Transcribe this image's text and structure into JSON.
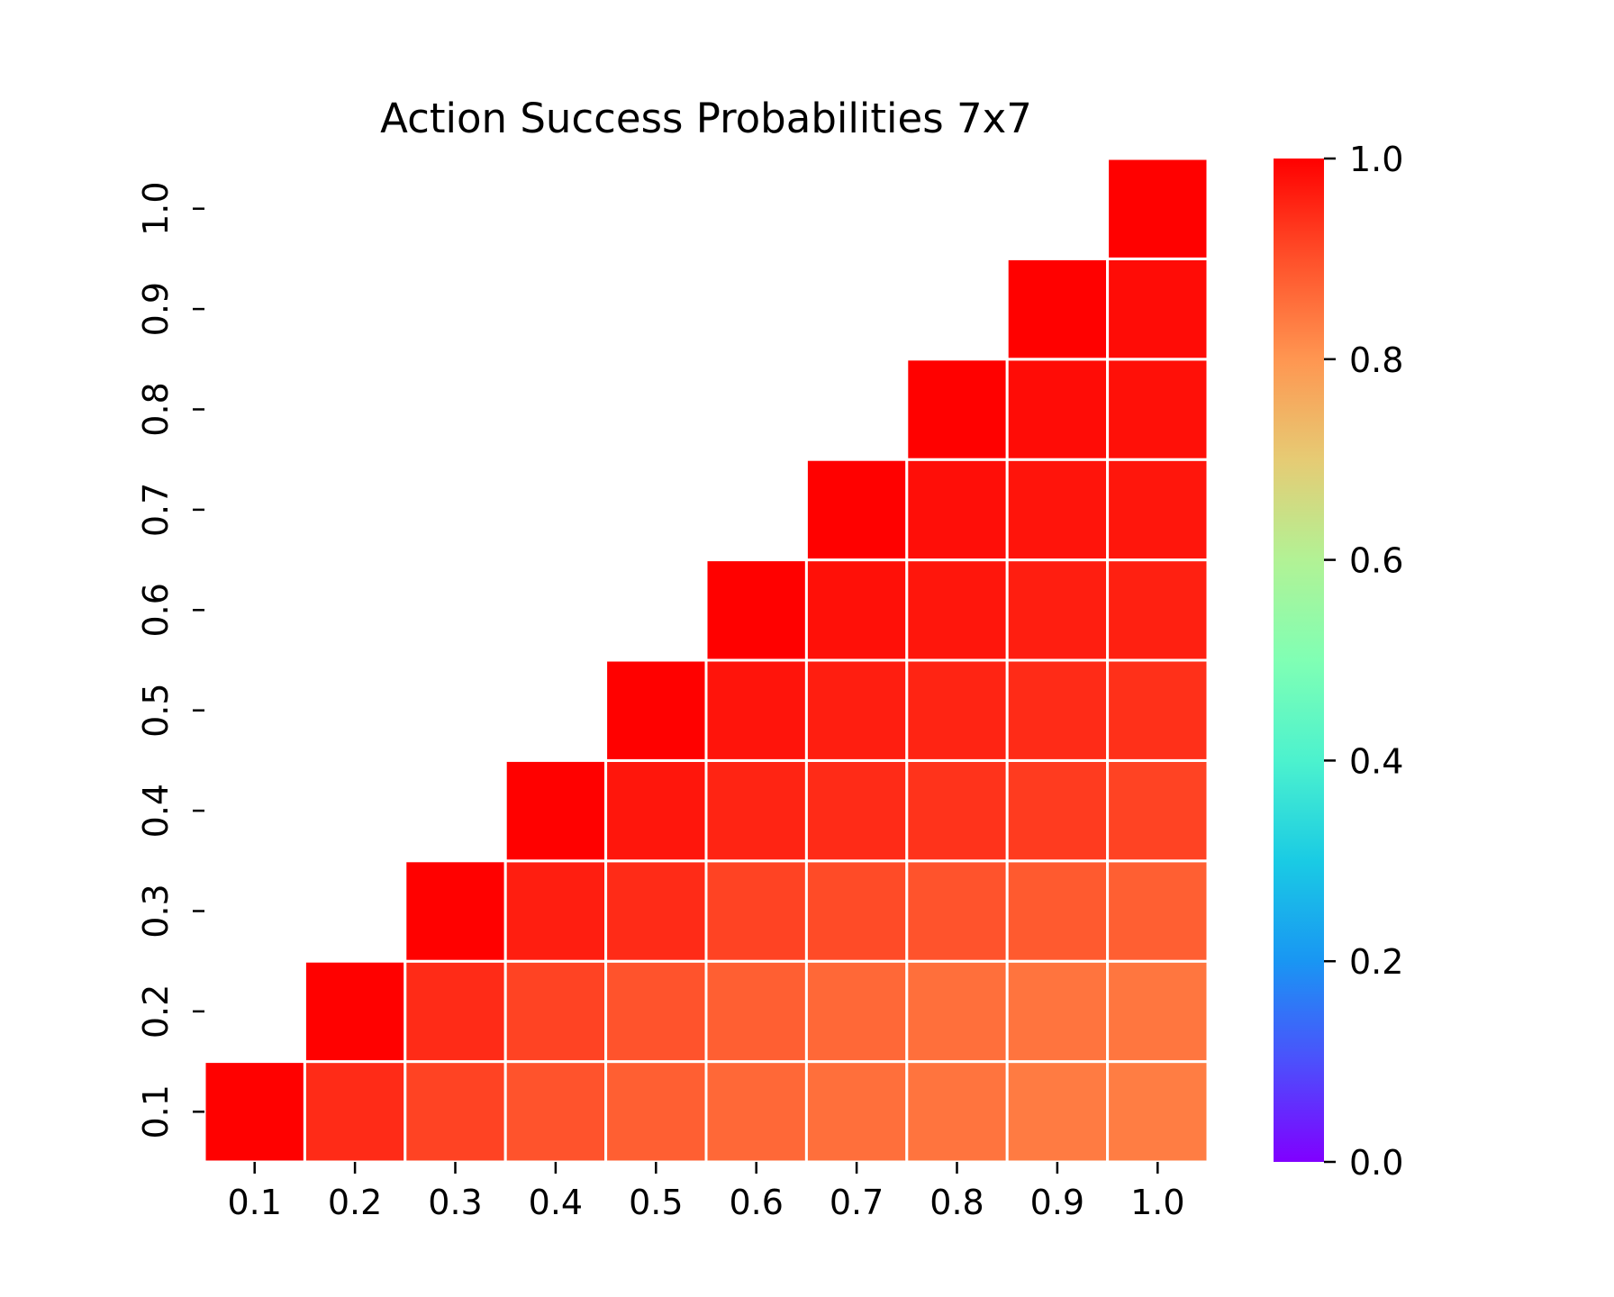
{
  "chart_data": {
    "type": "heatmap",
    "title": "Action Success Probabilities 7x7",
    "xlabel": "",
    "ylabel": "",
    "x": [
      "0.1",
      "0.2",
      "0.3",
      "0.4",
      "0.5",
      "0.6",
      "0.7",
      "0.8",
      "0.9",
      "1.0"
    ],
    "y": [
      "0.1",
      "0.2",
      "0.3",
      "0.4",
      "0.5",
      "0.6",
      "0.7",
      "0.8",
      "0.9",
      "1.0"
    ],
    "values": [
      [
        0.999,
        0.946,
        0.916,
        0.896,
        0.879,
        0.866,
        0.856,
        0.848,
        0.838,
        0.836
      ],
      [
        null,
        0.999,
        0.946,
        0.916,
        0.896,
        0.879,
        0.866,
        0.856,
        0.848,
        0.846
      ],
      [
        null,
        null,
        0.999,
        0.962,
        0.946,
        0.916,
        0.906,
        0.896,
        0.886,
        0.879
      ],
      [
        null,
        null,
        null,
        0.999,
        0.972,
        0.955,
        0.946,
        0.936,
        0.926,
        0.916
      ],
      [
        null,
        null,
        null,
        null,
        0.999,
        0.975,
        0.962,
        0.955,
        0.946,
        0.94
      ],
      [
        null,
        null,
        null,
        null,
        null,
        0.999,
        0.98,
        0.972,
        0.962,
        0.96
      ],
      [
        null,
        null,
        null,
        null,
        null,
        null,
        0.999,
        0.982,
        0.975,
        0.972
      ],
      [
        null,
        null,
        null,
        null,
        null,
        null,
        null,
        0.999,
        0.985,
        0.98
      ],
      [
        null,
        null,
        null,
        null,
        null,
        null,
        null,
        null,
        0.999,
        0.985
      ],
      [
        null,
        null,
        null,
        null,
        null,
        null,
        null,
        null,
        null,
        0.999
      ]
    ],
    "colormap": "rainbow",
    "colorbar": {
      "range": [
        0.0,
        1.0
      ],
      "ticks": [
        "0.0",
        "0.2",
        "0.4",
        "0.6",
        "0.8",
        "1.0"
      ]
    },
    "grid": false,
    "cell_border_color": "#ffffff"
  }
}
